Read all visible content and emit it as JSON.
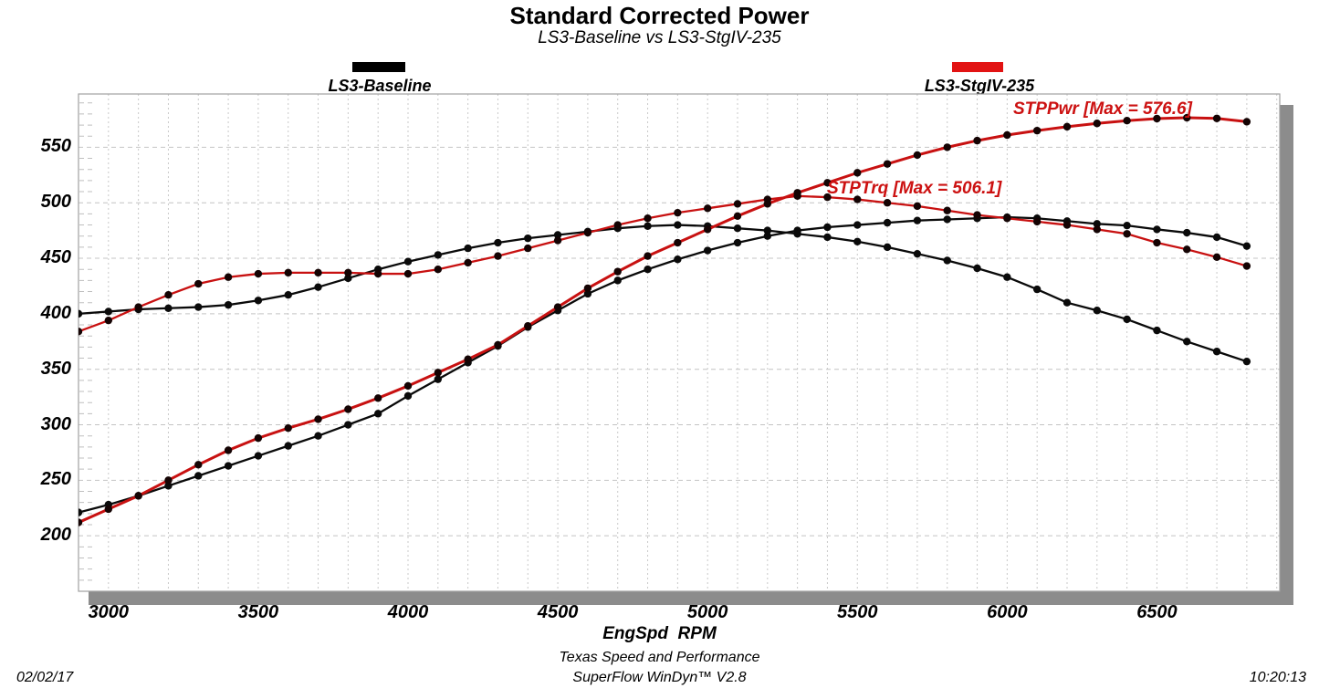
{
  "header": {
    "title": "Standard Corrected Power",
    "subtitle": "LS3-Baseline vs LS3-StgIV-235"
  },
  "legend": {
    "baseline": {
      "label": "LS3-Baseline",
      "color": "#000000"
    },
    "stg4": {
      "label": "LS3-StgIV-235",
      "color": "#e21313"
    }
  },
  "annotations": {
    "pwr": {
      "text": "STPPwr [Max = 576.6]",
      "color": "#cc1111"
    },
    "trq": {
      "text": "STPTrq [Max = 506.1]",
      "color": "#cc1111"
    }
  },
  "axes": {
    "xlabel": "EngSpd  RPM",
    "x_tick_labels": [
      "3000",
      "3500",
      "4000",
      "4500",
      "5000",
      "5500",
      "6000",
      "6500"
    ],
    "y_tick_labels": [
      "550",
      "500",
      "450",
      "400",
      "350",
      "300",
      "250",
      "200"
    ]
  },
  "footer": {
    "company": "Texas Speed and Performance",
    "software": "SuperFlow WinDyn™ V2.8",
    "date": "02/02/17",
    "time": "10:20:13"
  },
  "chart_data": {
    "type": "line",
    "title": "Standard Corrected Power",
    "subtitle": "LS3-Baseline vs LS3-StgIV-235",
    "xlabel": "EngSpd RPM",
    "ylabel": "",
    "xlim": [
      2900,
      6910
    ],
    "ylim": [
      150,
      598
    ],
    "x_label_ticks": [
      3000,
      3500,
      4000,
      4500,
      5000,
      5500,
      6000,
      6500
    ],
    "y_label_ticks": [
      550,
      500,
      450,
      400,
      350,
      300,
      250,
      200
    ],
    "x_grid_step": 100,
    "y_grid_step": 50,
    "y_minor_step": 10,
    "grid": true,
    "legend_position": "top",
    "x": [
      2900,
      3000,
      3100,
      3200,
      3300,
      3400,
      3500,
      3600,
      3700,
      3800,
      3900,
      4000,
      4100,
      4200,
      4300,
      4400,
      4500,
      4600,
      4700,
      4800,
      4900,
      5000,
      5100,
      5200,
      5300,
      5400,
      5500,
      5600,
      5700,
      5800,
      5900,
      6000,
      6100,
      6200,
      6300,
      6400,
      6500,
      6600,
      6700,
      6800
    ],
    "series": [
      {
        "name": "LS3-Baseline STPPwr",
        "color": "#0a0a0a",
        "width": 2.3,
        "marker_color": "#0a0a0a",
        "values": [
          221,
          228,
          236,
          245,
          254,
          263,
          272,
          281,
          290,
          300,
          310,
          326,
          341,
          356,
          371,
          388,
          403,
          418,
          430,
          440,
          449,
          457,
          464,
          470,
          475,
          478,
          480,
          482,
          484,
          485,
          486,
          487,
          486,
          483.5,
          481,
          479.5,
          476,
          473,
          469,
          461
        ]
      },
      {
        "name": "LS3-Baseline STPTrq",
        "color": "#0a0a0a",
        "width": 2.3,
        "marker_color": "#0a0a0a",
        "values": [
          400,
          402,
          404,
          405,
          406,
          408,
          412,
          417,
          424,
          432,
          440,
          447,
          453,
          459,
          464,
          468,
          471,
          474,
          477,
          479,
          480,
          479,
          477,
          475,
          472,
          469,
          465,
          460,
          454,
          448,
          441,
          433,
          422,
          410,
          403,
          395,
          385,
          375,
          366,
          357
        ]
      },
      {
        "name": "LS3-StgIV-235 STPPwr",
        "color": "#c81111",
        "width": 3,
        "marker_color": "#140303",
        "values": [
          212,
          224,
          236,
          250,
          264,
          277,
          288,
          297,
          305,
          314,
          324,
          335,
          347,
          359,
          372,
          389,
          406,
          423,
          438,
          452,
          464,
          476,
          488,
          499,
          509,
          518,
          527,
          535,
          543,
          550,
          556,
          561,
          565,
          568.5,
          571.5,
          574,
          575.8,
          576.6,
          576,
          573
        ]
      },
      {
        "name": "LS3-StgIV-235 STPTrq",
        "color": "#c81111",
        "width": 2.3,
        "marker_color": "#140303",
        "values": [
          384,
          394,
          406,
          417,
          427,
          433,
          436,
          437,
          437,
          437,
          436,
          436,
          440,
          446,
          452,
          459,
          466,
          473,
          480,
          486,
          491,
          495,
          499,
          503,
          506.1,
          505,
          503,
          500,
          497,
          493,
          489,
          486,
          483,
          480,
          476,
          472,
          464,
          458,
          451,
          443
        ]
      }
    ]
  }
}
